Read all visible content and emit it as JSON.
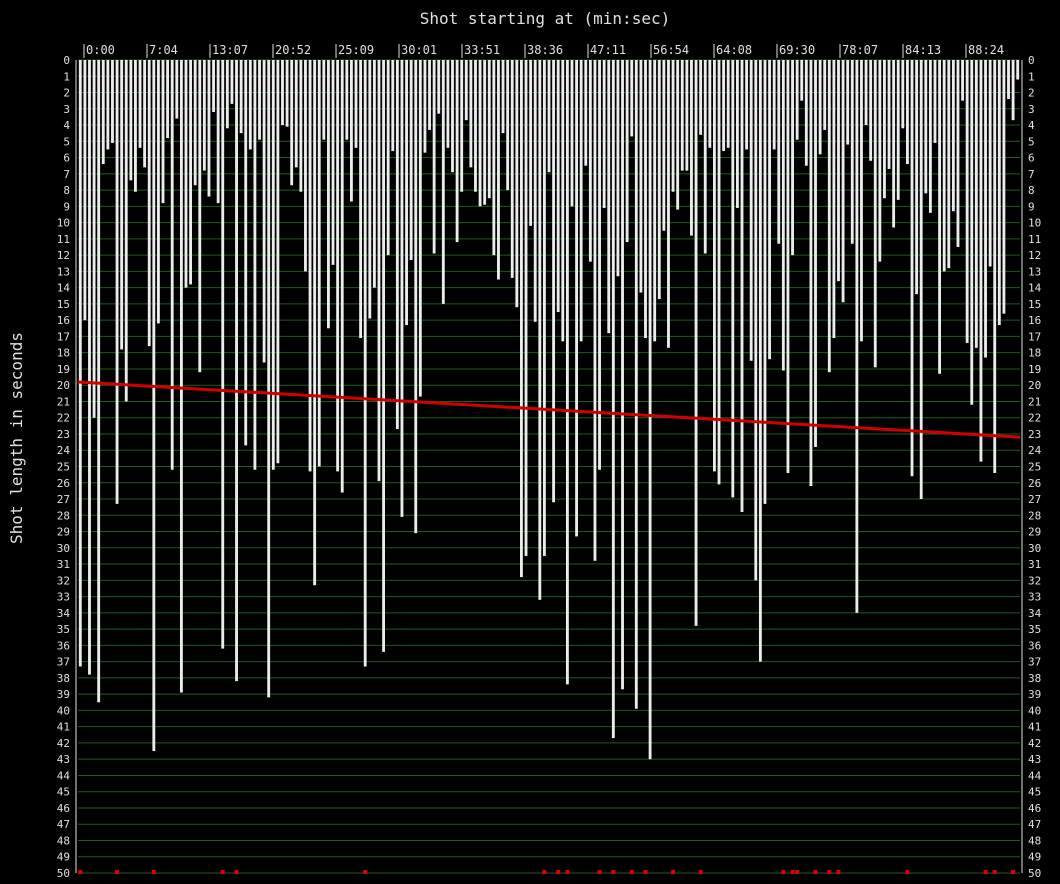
{
  "chart_data": {
    "type": "bar",
    "title": "Shot starting at (min:sec)",
    "xlabel": "",
    "ylabel": "Shot length in seconds",
    "ylim": [
      0,
      50
    ],
    "y_inverted": true,
    "grid": true,
    "legend": "none",
    "x_tick_labels": [
      "0:00",
      "7:04",
      "13:07",
      "20:52",
      "25:09",
      "30:01",
      "33:51",
      "38:36",
      "47:11",
      "56:54",
      "64:08",
      "69:30",
      "78:07",
      "84:13",
      "88:24"
    ],
    "values": [
      37.3,
      16.0,
      37.8,
      22.0,
      39.5,
      6.4,
      5.5,
      5.1,
      27.3,
      17.8,
      21.0,
      7.4,
      8.1,
      5.4,
      6.6,
      17.6,
      42.5,
      16.2,
      8.8,
      4.8,
      25.2,
      3.6,
      38.9,
      14.0,
      13.8,
      7.7,
      19.2,
      6.8,
      8.4,
      3.2,
      8.8,
      36.2,
      4.2,
      2.7,
      38.2,
      4.5,
      23.7,
      5.5,
      25.2,
      4.9,
      18.6,
      39.2,
      25.2,
      24.8,
      4.0,
      4.1,
      7.7,
      6.6,
      8.1,
      13.0,
      25.3,
      32.3,
      25.0,
      4.9,
      16.5,
      12.6,
      25.3,
      26.6,
      4.9,
      8.7,
      5.4,
      17.1,
      37.3,
      15.9,
      14.0,
      25.9,
      36.4,
      12.0,
      5.6,
      22.7,
      28.1,
      16.3,
      12.3,
      29.1,
      20.7,
      5.7,
      4.3,
      11.9,
      3.3,
      15.0,
      5.4,
      6.9,
      11.2,
      8.1,
      3.7,
      6.6,
      8.1,
      9.0,
      8.9,
      8.5,
      12.0,
      13.5,
      4.5,
      8.0,
      13.4,
      15.2,
      31.8,
      30.5,
      10.2,
      16.1,
      33.2,
      30.5,
      6.9,
      27.2,
      15.5,
      17.3,
      38.4,
      9.0,
      29.3,
      17.3,
      6.5,
      12.4,
      30.8,
      25.2,
      9.1,
      16.8,
      41.7,
      13.3,
      38.7,
      11.2,
      4.7,
      39.9,
      14.3,
      17.1,
      43.0,
      17.3,
      14.7,
      10.5,
      17.7,
      8.1,
      9.2,
      6.8,
      6.8,
      10.8,
      34.8,
      4.6,
      11.9,
      5.4,
      25.3,
      26.1,
      5.6,
      5.4,
      26.9,
      9.1,
      27.8,
      5.5,
      18.5,
      32.0,
      37.0,
      27.3,
      18.4,
      5.5,
      11.3,
      19.1,
      25.4,
      12.0,
      4.9,
      2.5,
      6.5,
      26.2,
      23.8,
      5.8,
      4.3,
      19.2,
      17.1,
      13.6,
      14.9,
      5.2,
      11.3,
      34.0,
      17.3,
      4.0,
      6.2,
      18.9,
      12.4,
      8.5,
      6.7,
      10.3,
      8.6,
      4.2,
      6.4,
      25.6,
      14.4,
      27.0,
      8.2,
      9.4,
      5.1,
      19.3,
      13.0,
      12.8,
      9.3,
      11.5,
      2.5,
      17.4,
      21.2,
      17.7,
      24.7,
      18.3,
      12.7,
      25.4,
      16.3,
      15.6,
      2.4,
      3.7,
      1.2
    ],
    "trend": {
      "start": 19.8,
      "end": 23.2
    },
    "markers": [
      {
        "index": 0
      },
      {
        "index": 8
      },
      {
        "index": 16
      },
      {
        "index": 31
      },
      {
        "index": 34
      },
      {
        "index": 62
      },
      {
        "index": 101
      },
      {
        "index": 104
      },
      {
        "index": 106
      },
      {
        "index": 113
      },
      {
        "index": 116
      },
      {
        "index": 120
      },
      {
        "index": 123
      },
      {
        "index": 129
      },
      {
        "index": 135
      },
      {
        "index": 153
      },
      {
        "index": 155
      },
      {
        "index": 156
      },
      {
        "index": 160
      },
      {
        "index": 163
      },
      {
        "index": 165
      },
      {
        "index": 180
      },
      {
        "index": 197
      },
      {
        "index": 199
      },
      {
        "index": 203
      }
    ]
  }
}
